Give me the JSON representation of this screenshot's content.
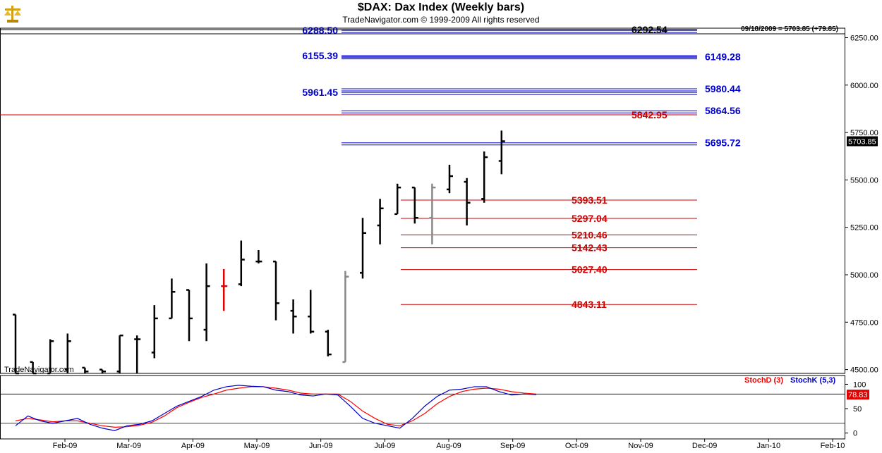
{
  "header": {
    "title": "$DAX:  Dax Index  (Weekly bars)",
    "subtitle": "TradeNavigator.com © 1999-2009 All rights reserved",
    "status": "09/18/2009 = 5703.85 (+79.85)",
    "watermark": "TradeNavigator.com",
    "logo_icon": "gold-scales-logo-icon"
  },
  "chart_data": {
    "type": "ohlc",
    "price_axis": {
      "range": [
        4480,
        6300
      ],
      "ticks": [
        "6250.00",
        "6000.00",
        "5750.00",
        "5500.00",
        "5250.00",
        "5000.00",
        "4750.00",
        "4500.00"
      ],
      "tick_values": [
        6250,
        6000,
        5750,
        5500,
        5250,
        5000,
        4750,
        4500
      ]
    },
    "last_price": {
      "label": "5703.85",
      "value": 5703.85
    },
    "x_axis": {
      "labels": [
        "Feb-09",
        "Mar-09",
        "Apr-09",
        "May-09",
        "Jun-09",
        "Jul-09",
        "Aug-09",
        "Sep-09",
        "Oct-09",
        "Nov-09",
        "Dec-09",
        "Jan-10",
        "Feb-10"
      ]
    },
    "bars": [
      {
        "o": 4790,
        "h": 4790,
        "l": 4480,
        "c": 4480,
        "col": "black"
      },
      {
        "o": 4540,
        "h": 4540,
        "l": 4480,
        "c": 4480,
        "col": "black"
      },
      {
        "o": 4480,
        "h": 4660,
        "l": 4480,
        "c": 4650,
        "col": "black"
      },
      {
        "o": 4500,
        "h": 4690,
        "l": 4480,
        "c": 4650,
        "col": "black"
      },
      {
        "o": 4510,
        "h": 4510,
        "l": 4480,
        "c": 4490,
        "col": "black"
      },
      {
        "o": 4500,
        "h": 4500,
        "l": 4480,
        "c": 4490,
        "col": "black"
      },
      {
        "o": 4490,
        "h": 4680,
        "l": 4480,
        "c": 4680,
        "col": "black"
      },
      {
        "o": 4660,
        "h": 4680,
        "l": 4480,
        "c": 4660,
        "col": "black"
      },
      {
        "o": 4590,
        "h": 4840,
        "l": 4560,
        "c": 4770,
        "col": "black"
      },
      {
        "o": 4770,
        "h": 4980,
        "l": 4770,
        "c": 4910,
        "col": "black"
      },
      {
        "o": 4920,
        "h": 4920,
        "l": 4650,
        "c": 4770,
        "col": "black"
      },
      {
        "o": 4710,
        "h": 5060,
        "l": 4650,
        "c": 4940,
        "col": "black"
      },
      {
        "o": 4940,
        "h": 5030,
        "l": 4810,
        "c": 4940,
        "col": "red"
      },
      {
        "o": 4950,
        "h": 5180,
        "l": 4940,
        "c": 5080,
        "col": "black"
      },
      {
        "o": 5070,
        "h": 5130,
        "l": 5060,
        "c": 5070,
        "col": "black"
      },
      {
        "o": 5070,
        "h": 5070,
        "l": 4760,
        "c": 4850,
        "col": "black"
      },
      {
        "o": 4810,
        "h": 4870,
        "l": 4690,
        "c": 4780,
        "col": "black"
      },
      {
        "o": 4780,
        "h": 4920,
        "l": 4690,
        "c": 4700,
        "col": "black"
      },
      {
        "o": 4700,
        "h": 4710,
        "l": 4570,
        "c": 4580,
        "col": "black"
      },
      {
        "o": 4540,
        "h": 5020,
        "l": 4540,
        "c": 4990,
        "col": "gray"
      },
      {
        "o": 5010,
        "h": 5300,
        "l": 4980,
        "c": 5220,
        "col": "black"
      },
      {
        "o": 5260,
        "h": 5400,
        "l": 5160,
        "c": 5350,
        "col": "black"
      },
      {
        "o": 5320,
        "h": 5480,
        "l": 5320,
        "c": 5460,
        "col": "black"
      },
      {
        "o": 5460,
        "h": 5460,
        "l": 5270,
        "c": 5300,
        "col": "black"
      },
      {
        "o": 5300,
        "h": 5480,
        "l": 5160,
        "c": 5460,
        "col": "gray"
      },
      {
        "o": 5450,
        "h": 5580,
        "l": 5430,
        "c": 5520,
        "col": "black"
      },
      {
        "o": 5490,
        "h": 5510,
        "l": 5260,
        "c": 5380,
        "col": "black"
      },
      {
        "o": 5400,
        "h": 5650,
        "l": 5380,
        "c": 5620,
        "col": "black"
      },
      {
        "o": 5600,
        "h": 5760,
        "l": 5530,
        "c": 5703.85,
        "col": "black"
      }
    ],
    "levels": [
      {
        "label": "6288.50",
        "value": 6288.5,
        "color": "#0000cc",
        "side": "left",
        "full": false,
        "strong": false
      },
      {
        "label": "6292.54",
        "value": 6292.54,
        "color": "#000000",
        "side": "right",
        "full": true,
        "strong": false
      },
      {
        "label": "6155.39",
        "value": 6155.39,
        "color": "#0000cc",
        "side": "left",
        "full": false,
        "strong": false
      },
      {
        "label": "6149.28",
        "value": 6149.28,
        "color": "#0000cc",
        "side": "right",
        "full": false,
        "strong": false
      },
      {
        "label": "5961.45",
        "value": 5961.45,
        "color": "#0000cc",
        "side": "left",
        "full": false,
        "strong": false
      },
      {
        "label": "5980.44",
        "value": 5980.44,
        "color": "#0000cc",
        "side": "right",
        "full": false,
        "strong": false
      },
      {
        "label": "5864.56",
        "value": 5864.56,
        "color": "#0000cc",
        "side": "right",
        "full": false,
        "strong": false
      },
      {
        "label": "5842.95",
        "value": 5842.95,
        "color": "#cc0000",
        "side": "mid",
        "full": true,
        "strong": false
      },
      {
        "label": "5695.72",
        "value": 5695.72,
        "color": "#0000cc",
        "side": "right",
        "full": false,
        "strong": false
      },
      {
        "label": "5393.51",
        "value": 5393.51,
        "color": "#cc0000",
        "side": "red",
        "full": false,
        "strong": false
      },
      {
        "label": "5297.04",
        "value": 5297.04,
        "color": "#cc0000",
        "side": "red",
        "full": false,
        "strong": false
      },
      {
        "label": "5210.46",
        "value": 5210.46,
        "color": "#cc0000",
        "side": "red",
        "full": false,
        "strong": false
      },
      {
        "label": "5142.43",
        "value": 5142.43,
        "color": "#cc0000",
        "side": "red",
        "full": false,
        "strong": false
      },
      {
        "label": "5027.40",
        "value": 5027.4,
        "color": "#cc0000",
        "side": "red",
        "full": false,
        "strong": false
      },
      {
        "label": "4843.11",
        "value": 4843.11,
        "color": "#cc0000",
        "side": "red",
        "full": false,
        "strong": false
      }
    ],
    "stochastic": {
      "legend": [
        {
          "name": "StochD (3)",
          "color": "#ff0000"
        },
        {
          "name": "StochK (5,3)",
          "color": "#0000cc"
        }
      ],
      "ticks": [
        "100",
        "50",
        "0"
      ],
      "tick_values": [
        100,
        50,
        0
      ],
      "range": [
        -12,
        118
      ],
      "ref_lines": [
        80,
        20
      ],
      "last_value": "78.83",
      "k": [
        15,
        35,
        25,
        20,
        25,
        30,
        18,
        10,
        5,
        15,
        18,
        25,
        40,
        55,
        65,
        75,
        88,
        95,
        98,
        96,
        95,
        88,
        85,
        78,
        76,
        80,
        78,
        55,
        30,
        20,
        15,
        10,
        30,
        55,
        75,
        88,
        90,
        95,
        95,
        85,
        78,
        80,
        78.83
      ],
      "d": [
        25,
        30,
        27,
        23,
        25,
        25,
        20,
        15,
        12,
        13,
        16,
        22,
        35,
        52,
        63,
        73,
        80,
        88,
        92,
        95,
        95,
        92,
        88,
        82,
        80,
        80,
        80,
        65,
        45,
        30,
        18,
        15,
        25,
        40,
        60,
        75,
        85,
        90,
        92,
        90,
        85,
        82,
        80
      ]
    }
  }
}
